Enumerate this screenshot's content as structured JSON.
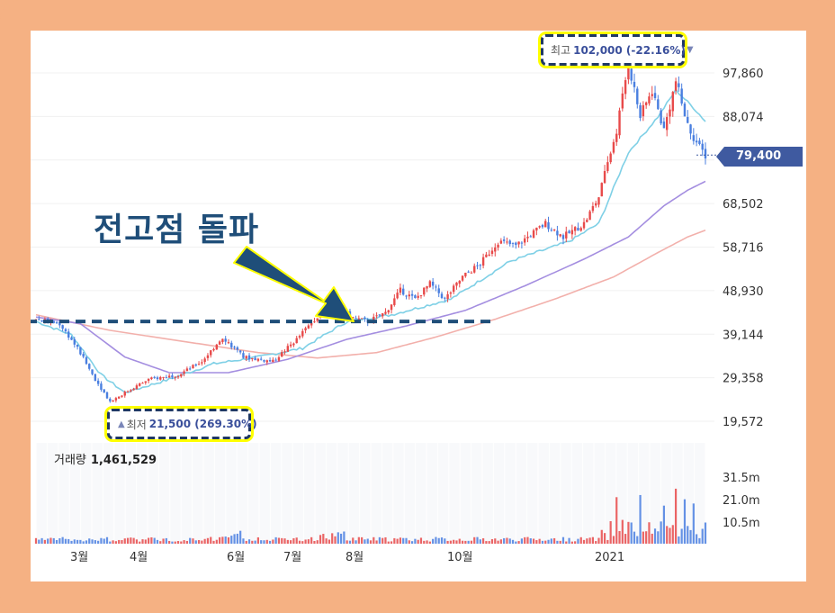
{
  "headline": "전고점 돌파",
  "high_marker": {
    "label": "최고",
    "value": "102,000 (-22.16%)",
    "arrow": "▼"
  },
  "low_marker": {
    "label": "최저",
    "value": "21,500 (269.30%)",
    "arrow": "▲"
  },
  "volume_caption": {
    "label": "거래량",
    "value": "1,461,529"
  },
  "current_price": "79,400",
  "colors": {
    "up": "#e84a4a",
    "down": "#4a7fe0",
    "ma_short": "#7fd0e6",
    "ma_mid": "#a48ee0",
    "ma_long": "#f2b0ab",
    "annotation": "#1f4e79",
    "highlight": "#ffff00",
    "tag": "#3f5aa0",
    "frame": "#f5b183"
  },
  "icons": {
    "arrow": "thick-diagonal-arrow-icon"
  },
  "chart_data": {
    "type": "candlestick",
    "price_axis": {
      "ticks": [
        "97,860",
        "88,074",
        "79,400",
        "68,502",
        "58,716",
        "48,930",
        "39,144",
        "29,358",
        "19,572"
      ],
      "ylim": [
        18000,
        106000
      ]
    },
    "volume_axis": {
      "ticks": [
        "31.5m",
        "21.0m",
        "10.5m"
      ]
    },
    "x_ticks": [
      "3월",
      "4월",
      "6월",
      "7월",
      "8월",
      "10월",
      "2021"
    ],
    "resistance_line": 42000,
    "high": 102000,
    "low": 21500,
    "current": 79400,
    "volume_current": 1461529,
    "key_prices": [
      {
        "i": 0,
        "p": 42500
      },
      {
        "i": 8,
        "p": 41500
      },
      {
        "i": 14,
        "p": 36000
      },
      {
        "i": 20,
        "p": 29000
      },
      {
        "i": 25,
        "p": 24000
      },
      {
        "i": 30,
        "p": 26000
      },
      {
        "i": 38,
        "p": 29000
      },
      {
        "i": 48,
        "p": 30000
      },
      {
        "i": 56,
        "p": 33000
      },
      {
        "i": 63,
        "p": 38500
      },
      {
        "i": 70,
        "p": 34000
      },
      {
        "i": 80,
        "p": 33000
      },
      {
        "i": 88,
        "p": 38000
      },
      {
        "i": 96,
        "p": 44000
      },
      {
        "i": 101,
        "p": 47000
      },
      {
        "i": 106,
        "p": 43000
      },
      {
        "i": 112,
        "p": 42000
      },
      {
        "i": 118,
        "p": 44000
      },
      {
        "i": 123,
        "p": 49000
      },
      {
        "i": 128,
        "p": 47000
      },
      {
        "i": 133,
        "p": 50500
      },
      {
        "i": 138,
        "p": 47000
      },
      {
        "i": 144,
        "p": 52000
      },
      {
        "i": 150,
        "p": 55000
      },
      {
        "i": 156,
        "p": 60000
      },
      {
        "i": 162,
        "p": 59000
      },
      {
        "i": 168,
        "p": 62000
      },
      {
        "i": 172,
        "p": 64000
      },
      {
        "i": 178,
        "p": 61000
      },
      {
        "i": 185,
        "p": 64000
      },
      {
        "i": 190,
        "p": 70000
      },
      {
        "i": 196,
        "p": 85000
      },
      {
        "i": 200,
        "p": 100000
      },
      {
        "i": 204,
        "p": 88000
      },
      {
        "i": 208,
        "p": 94000
      },
      {
        "i": 212,
        "p": 85000
      },
      {
        "i": 216,
        "p": 96000
      },
      {
        "i": 220,
        "p": 86000
      },
      {
        "i": 224,
        "p": 81000
      },
      {
        "i": 226,
        "p": 79400
      }
    ],
    "ma_short": [
      {
        "i": 0,
        "p": 42000
      },
      {
        "i": 12,
        "p": 39000
      },
      {
        "i": 22,
        "p": 30000
      },
      {
        "i": 30,
        "p": 26000
      },
      {
        "i": 45,
        "p": 29000
      },
      {
        "i": 60,
        "p": 32500
      },
      {
        "i": 75,
        "p": 34000
      },
      {
        "i": 90,
        "p": 36000
      },
      {
        "i": 105,
        "p": 42000
      },
      {
        "i": 120,
        "p": 43500
      },
      {
        "i": 140,
        "p": 47000
      },
      {
        "i": 160,
        "p": 55500
      },
      {
        "i": 180,
        "p": 60000
      },
      {
        "i": 190,
        "p": 64000
      },
      {
        "i": 200,
        "p": 80000
      },
      {
        "i": 210,
        "p": 88000
      },
      {
        "i": 216,
        "p": 94000
      },
      {
        "i": 222,
        "p": 90000
      },
      {
        "i": 226,
        "p": 87000
      }
    ],
    "ma_mid": [
      {
        "i": 0,
        "p": 43000
      },
      {
        "i": 15,
        "p": 41500
      },
      {
        "i": 30,
        "p": 34000
      },
      {
        "i": 45,
        "p": 30500
      },
      {
        "i": 65,
        "p": 30500
      },
      {
        "i": 85,
        "p": 33500
      },
      {
        "i": 105,
        "p": 38000
      },
      {
        "i": 125,
        "p": 41000
      },
      {
        "i": 145,
        "p": 44500
      },
      {
        "i": 165,
        "p": 50000
      },
      {
        "i": 185,
        "p": 56000
      },
      {
        "i": 200,
        "p": 61000
      },
      {
        "i": 212,
        "p": 68000
      },
      {
        "i": 220,
        "p": 71500
      },
      {
        "i": 226,
        "p": 73500
      }
    ],
    "ma_long": [
      {
        "i": 0,
        "p": 43500
      },
      {
        "i": 25,
        "p": 40000
      },
      {
        "i": 50,
        "p": 37500
      },
      {
        "i": 75,
        "p": 35000
      },
      {
        "i": 95,
        "p": 33800
      },
      {
        "i": 115,
        "p": 35000
      },
      {
        "i": 135,
        "p": 38500
      },
      {
        "i": 155,
        "p": 42500
      },
      {
        "i": 175,
        "p": 47000
      },
      {
        "i": 195,
        "p": 52000
      },
      {
        "i": 210,
        "p": 57500
      },
      {
        "i": 220,
        "p": 61000
      },
      {
        "i": 226,
        "p": 62500
      }
    ]
  }
}
